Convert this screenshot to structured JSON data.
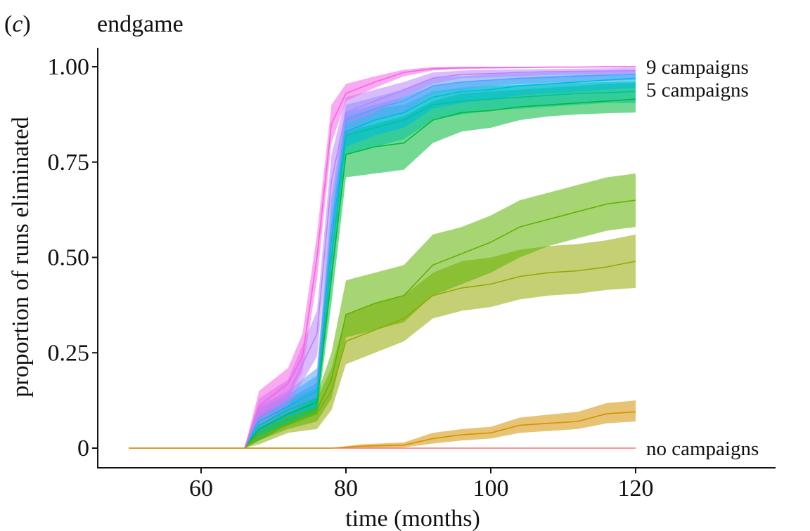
{
  "figure": {
    "panel_label": "c",
    "title": "endgame"
  },
  "chart_data": {
    "type": "line",
    "title": "endgame",
    "xlabel": "time (months)",
    "ylabel": "proportion of runs eliminated",
    "xlim": [
      45,
      140
    ],
    "ylim": [
      -0.05,
      1.05
    ],
    "x_ticks": [
      60,
      80,
      100,
      120
    ],
    "x_tick_labels": [
      "60",
      "80",
      "100",
      "120"
    ],
    "y_ticks": [
      0,
      0.25,
      0.5,
      0.75,
      1.0
    ],
    "y_tick_labels": [
      "0",
      "0.25",
      "0.50",
      "0.75",
      "1.00"
    ],
    "grid": false,
    "legend": "none",
    "annotations": [
      {
        "text": "9 campaigns",
        "y": 1.0
      },
      {
        "text": "5 campaigns",
        "y": 0.94
      },
      {
        "text": "no campaigns",
        "y": 0.0
      }
    ],
    "series": [
      {
        "color": "#f8766d",
        "x": [
          50,
          120
        ],
        "y": [
          0,
          0
        ],
        "lower": [
          0,
          0
        ],
        "upper": [
          0,
          0
        ]
      },
      {
        "color": "#d39200",
        "x": [
          50,
          78,
          82,
          88,
          92,
          96,
          100,
          104,
          108,
          112,
          116,
          120
        ],
        "y": [
          0,
          0,
          0.005,
          0.008,
          0.025,
          0.035,
          0.04,
          0.06,
          0.065,
          0.07,
          0.09,
          0.095
        ],
        "lower": [
          0,
          0,
          0,
          0.002,
          0.012,
          0.02,
          0.025,
          0.04,
          0.045,
          0.05,
          0.065,
          0.07
        ],
        "upper": [
          0,
          0,
          0.01,
          0.015,
          0.04,
          0.05,
          0.056,
          0.08,
          0.088,
          0.095,
          0.118,
          0.125
        ]
      },
      {
        "color": "#93aa00",
        "x": [
          66,
          68,
          72,
          76,
          78,
          80,
          84,
          88,
          92,
          96,
          100,
          104,
          108,
          112,
          116,
          120
        ],
        "y": [
          0,
          0.03,
          0.06,
          0.09,
          0.15,
          0.28,
          0.31,
          0.34,
          0.4,
          0.42,
          0.43,
          0.45,
          0.46,
          0.465,
          0.475,
          0.49
        ],
        "lower": [
          0,
          0.01,
          0.04,
          0.05,
          0.1,
          0.22,
          0.25,
          0.28,
          0.34,
          0.36,
          0.37,
          0.39,
          0.4,
          0.405,
          0.415,
          0.42
        ],
        "upper": [
          0,
          0.05,
          0.09,
          0.13,
          0.21,
          0.35,
          0.38,
          0.4,
          0.46,
          0.49,
          0.5,
          0.52,
          0.53,
          0.535,
          0.545,
          0.56
        ]
      },
      {
        "color": "#5eb300",
        "x": [
          66,
          68,
          72,
          76,
          78,
          80,
          84,
          88,
          92,
          96,
          100,
          104,
          108,
          112,
          116,
          120
        ],
        "y": [
          0,
          0.04,
          0.08,
          0.1,
          0.18,
          0.35,
          0.38,
          0.4,
          0.48,
          0.51,
          0.54,
          0.58,
          0.6,
          0.62,
          0.64,
          0.65
        ],
        "lower": [
          0,
          0.02,
          0.05,
          0.07,
          0.13,
          0.29,
          0.31,
          0.33,
          0.4,
          0.43,
          0.46,
          0.5,
          0.53,
          0.55,
          0.57,
          0.58
        ],
        "upper": [
          0,
          0.07,
          0.11,
          0.14,
          0.25,
          0.44,
          0.46,
          0.48,
          0.56,
          0.58,
          0.61,
          0.65,
          0.67,
          0.69,
          0.71,
          0.72
        ]
      },
      {
        "color": "#00ba38",
        "x": [
          66,
          68,
          72,
          76,
          78,
          80,
          84,
          88,
          92,
          96,
          100,
          104,
          108,
          112,
          116,
          120
        ],
        "y": [
          0,
          0.05,
          0.09,
          0.12,
          0.45,
          0.77,
          0.79,
          0.8,
          0.86,
          0.88,
          0.885,
          0.895,
          0.9,
          0.905,
          0.91,
          0.915
        ],
        "lower": [
          0,
          0.02,
          0.06,
          0.09,
          0.38,
          0.71,
          0.72,
          0.73,
          0.8,
          0.83,
          0.84,
          0.86,
          0.87,
          0.875,
          0.878,
          0.88
        ],
        "upper": [
          0,
          0.08,
          0.12,
          0.16,
          0.52,
          0.83,
          0.85,
          0.87,
          0.91,
          0.93,
          0.935,
          0.94,
          0.945,
          0.95,
          0.955,
          0.958
        ]
      },
      {
        "color": "#00c19f",
        "x": [
          66,
          68,
          72,
          76,
          78,
          80,
          84,
          88,
          92,
          96,
          100,
          104,
          108,
          112,
          116,
          120
        ],
        "y": [
          0,
          0.06,
          0.1,
          0.13,
          0.5,
          0.82,
          0.84,
          0.86,
          0.9,
          0.91,
          0.915,
          0.92,
          0.925,
          0.93,
          0.932,
          0.935
        ],
        "lower": [
          0,
          0.03,
          0.07,
          0.1,
          0.43,
          0.77,
          0.79,
          0.81,
          0.86,
          0.875,
          0.885,
          0.89,
          0.895,
          0.9,
          0.905,
          0.905
        ],
        "upper": [
          0,
          0.09,
          0.13,
          0.17,
          0.58,
          0.87,
          0.89,
          0.9,
          0.935,
          0.945,
          0.95,
          0.952,
          0.955,
          0.958,
          0.96,
          0.962
        ]
      },
      {
        "color": "#00b9e3",
        "x": [
          66,
          68,
          72,
          76,
          78,
          80,
          84,
          88,
          92,
          96,
          100,
          104,
          108,
          112,
          116,
          120
        ],
        "y": [
          0,
          0.07,
          0.11,
          0.15,
          0.55,
          0.83,
          0.86,
          0.88,
          0.92,
          0.935,
          0.94,
          0.95,
          0.955,
          0.96,
          0.965,
          0.97
        ],
        "lower": [
          0,
          0.04,
          0.08,
          0.11,
          0.48,
          0.79,
          0.82,
          0.84,
          0.89,
          0.905,
          0.915,
          0.925,
          0.93,
          0.935,
          0.94,
          0.945
        ],
        "upper": [
          0,
          0.1,
          0.14,
          0.19,
          0.63,
          0.88,
          0.9,
          0.92,
          0.95,
          0.96,
          0.965,
          0.97,
          0.975,
          0.978,
          0.98,
          0.982
        ]
      },
      {
        "color": "#619cff",
        "x": [
          66,
          68,
          72,
          76,
          78,
          80,
          84,
          88,
          92,
          96,
          100,
          104,
          108,
          112,
          116,
          120
        ],
        "y": [
          0,
          0.08,
          0.12,
          0.17,
          0.58,
          0.86,
          0.89,
          0.91,
          0.95,
          0.96,
          0.965,
          0.97,
          0.972,
          0.975,
          0.978,
          0.98
        ],
        "lower": [
          0,
          0.05,
          0.09,
          0.13,
          0.5,
          0.82,
          0.86,
          0.88,
          0.93,
          0.94,
          0.95,
          0.955,
          0.958,
          0.96,
          0.963,
          0.965
        ],
        "upper": [
          0,
          0.11,
          0.15,
          0.21,
          0.66,
          0.9,
          0.92,
          0.94,
          0.97,
          0.975,
          0.98,
          0.983,
          0.985,
          0.987,
          0.988,
          0.99
        ]
      },
      {
        "color": "#b983ff",
        "x": [
          66,
          68,
          72,
          76,
          78,
          80,
          84,
          88,
          92,
          96,
          100,
          104,
          108,
          112,
          116,
          120
        ],
        "y": [
          0,
          0.1,
          0.14,
          0.3,
          0.7,
          0.88,
          0.91,
          0.94,
          0.97,
          0.98,
          0.982,
          0.985,
          0.987,
          0.988,
          0.989,
          0.99
        ],
        "lower": [
          0,
          0.06,
          0.11,
          0.24,
          0.63,
          0.85,
          0.88,
          0.92,
          0.955,
          0.97,
          0.972,
          0.975,
          0.978,
          0.98,
          0.981,
          0.982
        ],
        "upper": [
          0,
          0.13,
          0.18,
          0.36,
          0.77,
          0.92,
          0.94,
          0.96,
          0.985,
          0.99,
          0.992,
          0.993,
          0.994,
          0.995,
          0.996,
          0.997
        ]
      },
      {
        "color": "#f564e3",
        "x": [
          66,
          68,
          72,
          74,
          76,
          78,
          80,
          84,
          88,
          92,
          96,
          100,
          104,
          108,
          112,
          116,
          120
        ],
        "y": [
          0,
          0.11,
          0.17,
          0.24,
          0.5,
          0.85,
          0.93,
          0.96,
          0.985,
          0.995,
          0.997,
          0.998,
          0.998,
          0.999,
          0.999,
          1.0,
          1.0
        ],
        "lower": [
          0,
          0.08,
          0.13,
          0.2,
          0.44,
          0.8,
          0.91,
          0.945,
          0.975,
          0.99,
          0.994,
          0.995,
          0.996,
          0.997,
          0.998,
          0.998,
          0.998
        ],
        "upper": [
          0,
          0.15,
          0.21,
          0.3,
          0.56,
          0.9,
          0.955,
          0.975,
          0.992,
          0.999,
          1.0,
          1.0,
          1.0,
          1.0,
          1.0,
          1.0,
          1.0
        ]
      }
    ]
  }
}
